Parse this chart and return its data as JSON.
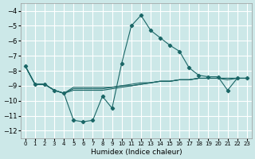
{
  "xlabel": "Humidex (Indice chaleur)",
  "bg_color": "#cce8e8",
  "grid_color": "#ffffff",
  "line_color": "#1a6666",
  "xlim": [
    -0.5,
    23.5
  ],
  "ylim": [
    -12.5,
    -3.5
  ],
  "xticks": [
    0,
    1,
    2,
    3,
    4,
    5,
    6,
    7,
    8,
    9,
    10,
    11,
    12,
    13,
    14,
    15,
    16,
    17,
    18,
    19,
    20,
    21,
    22,
    23
  ],
  "yticks": [
    -12,
    -11,
    -10,
    -9,
    -8,
    -7,
    -6,
    -5,
    -4
  ],
  "line1_x": [
    0,
    1,
    2,
    3,
    4,
    5,
    6,
    7,
    8,
    9,
    10,
    11,
    12,
    13,
    14,
    15,
    16,
    17,
    18,
    19,
    20,
    21,
    22,
    23
  ],
  "line1_y": [
    -7.7,
    -8.9,
    -8.9,
    -9.3,
    -9.5,
    -11.3,
    -11.4,
    -11.3,
    -9.7,
    -10.5,
    -7.5,
    -5.0,
    -4.3,
    -5.3,
    -5.8,
    -6.3,
    -6.7,
    -7.8,
    -8.3,
    -8.4,
    -8.4,
    -9.3,
    -8.5,
    -8.5
  ],
  "line2_x": [
    0,
    1,
    2,
    3,
    4,
    5,
    6,
    7,
    8,
    9,
    10,
    11,
    12,
    13,
    14,
    15,
    16,
    17,
    18,
    19,
    20,
    21,
    22,
    23
  ],
  "line2_y": [
    -7.7,
    -8.9,
    -8.9,
    -9.3,
    -9.5,
    -9.3,
    -9.3,
    -9.3,
    -9.3,
    -9.2,
    -9.1,
    -9.0,
    -8.9,
    -8.8,
    -8.7,
    -8.7,
    -8.6,
    -8.6,
    -8.5,
    -8.5,
    -8.5,
    -8.6,
    -8.5,
    -8.5
  ],
  "line3_x": [
    0,
    1,
    2,
    3,
    4,
    5,
    6,
    7,
    8,
    9,
    10,
    11,
    12,
    13,
    14,
    15,
    16,
    17,
    18,
    19,
    20,
    21,
    22,
    23
  ],
  "line3_y": [
    -7.7,
    -8.9,
    -8.9,
    -9.3,
    -9.5,
    -9.2,
    -9.2,
    -9.2,
    -9.2,
    -9.1,
    -9.0,
    -9.0,
    -8.9,
    -8.8,
    -8.7,
    -8.7,
    -8.6,
    -8.6,
    -8.5,
    -8.5,
    -8.5,
    -8.5,
    -8.5,
    -8.5
  ],
  "line4_x": [
    0,
    1,
    2,
    3,
    4,
    5,
    6,
    7,
    8,
    9,
    10,
    11,
    12,
    13,
    14,
    15,
    16,
    17,
    18,
    19,
    20,
    21,
    22,
    23
  ],
  "line4_y": [
    -7.7,
    -8.9,
    -8.9,
    -9.3,
    -9.5,
    -9.1,
    -9.1,
    -9.1,
    -9.1,
    -9.1,
    -9.0,
    -8.9,
    -8.8,
    -8.8,
    -8.7,
    -8.7,
    -8.6,
    -8.6,
    -8.5,
    -8.5,
    -8.5,
    -8.5,
    -8.5,
    -8.5
  ]
}
